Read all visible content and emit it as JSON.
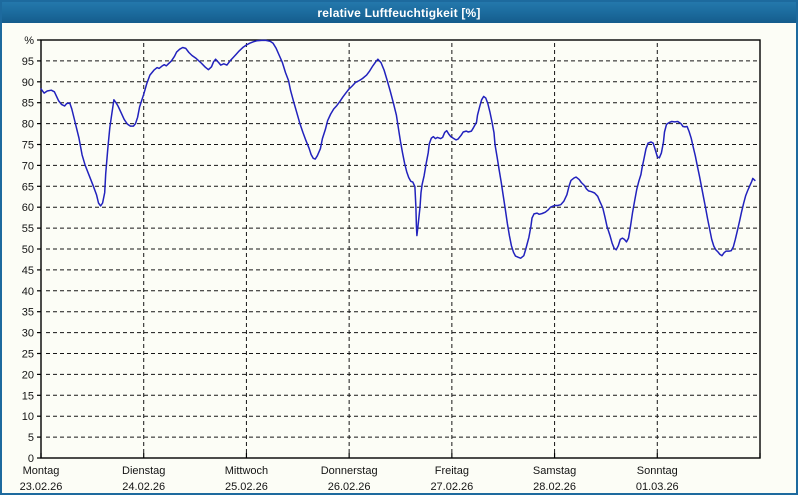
{
  "window": {
    "title": "relative Luftfeuchtigkeit [%]"
  },
  "colors": {
    "titlebar_bg": "#1b6a9c",
    "titlebar_text": "#ffffff",
    "window_border": "#1d6a9e",
    "canvas_bg": "#fcfdf6",
    "plot_frame": "#000000",
    "gridline": "#161616",
    "series_line": "#2222bd",
    "label_text": "#141414"
  },
  "chart_data": {
    "type": "line",
    "title": "relative Luftfeuchtigkeit [%]",
    "unit": "%",
    "ylim": [
      0,
      100
    ],
    "ytick_step": 5,
    "ytick_labels": [
      "0",
      "5",
      "10",
      "15",
      "20",
      "25",
      "30",
      "35",
      "40",
      "45",
      "50",
      "55",
      "60",
      "65",
      "70",
      "75",
      "80",
      "85",
      "90",
      "95",
      "%"
    ],
    "grid": "dashed",
    "legend_position": "none",
    "x_axis_note": "x in days since Monday 00:00, 7 days total",
    "days": [
      {
        "label": "Montag",
        "date": "23.02.26"
      },
      {
        "label": "Dienstag",
        "date": "24.02.26"
      },
      {
        "label": "Mittwoch",
        "date": "25.02.26"
      },
      {
        "label": "Donnerstag",
        "date": "26.02.26"
      },
      {
        "label": "Freitag",
        "date": "27.02.26"
      },
      {
        "label": "Samstag",
        "date": "28.02.26"
      },
      {
        "label": "Sonntag",
        "date": "01.03.26"
      }
    ],
    "series": [
      {
        "name": "relative Luftfeuchtigkeit",
        "color": "#2222bd",
        "points": [
          [
            0,
            88.3
          ],
          [
            0.03,
            87.3
          ],
          [
            0.06,
            87.8
          ],
          [
            0.1,
            88
          ],
          [
            0.13,
            87.6
          ],
          [
            0.17,
            85.5
          ],
          [
            0.2,
            84.6
          ],
          [
            0.23,
            84.2
          ],
          [
            0.25,
            84.8
          ],
          [
            0.28,
            84.9
          ],
          [
            0.3,
            83.5
          ],
          [
            0.33,
            80.5
          ],
          [
            0.37,
            76.5
          ],
          [
            0.4,
            72.5
          ],
          [
            0.43,
            70
          ],
          [
            0.47,
            67.5
          ],
          [
            0.51,
            65
          ],
          [
            0.54,
            63
          ],
          [
            0.56,
            61
          ],
          [
            0.58,
            60.3
          ],
          [
            0.6,
            61
          ],
          [
            0.62,
            63.5
          ],
          [
            0.63,
            68
          ],
          [
            0.65,
            74
          ],
          [
            0.67,
            79
          ],
          [
            0.69,
            82.5
          ],
          [
            0.71,
            85.7
          ],
          [
            0.73,
            85
          ],
          [
            0.75,
            84.2
          ],
          [
            0.78,
            82.6
          ],
          [
            0.81,
            81
          ],
          [
            0.84,
            79.9
          ],
          [
            0.87,
            79.4
          ],
          [
            0.9,
            79.4
          ],
          [
            0.92,
            80
          ],
          [
            0.94,
            81.5
          ],
          [
            0.96,
            84
          ],
          [
            1,
            87
          ],
          [
            1.03,
            89.6
          ],
          [
            1.06,
            91.6
          ],
          [
            1.1,
            92.8
          ],
          [
            1.13,
            93.4
          ],
          [
            1.15,
            93.2
          ],
          [
            1.18,
            93.8
          ],
          [
            1.2,
            94.1
          ],
          [
            1.22,
            93.8
          ],
          [
            1.24,
            94.3
          ],
          [
            1.27,
            95
          ],
          [
            1.3,
            96.1
          ],
          [
            1.32,
            97.1
          ],
          [
            1.35,
            97.8
          ],
          [
            1.38,
            98.2
          ],
          [
            1.41,
            98
          ],
          [
            1.44,
            97
          ],
          [
            1.47,
            96.3
          ],
          [
            1.51,
            95.6
          ],
          [
            1.56,
            94.5
          ],
          [
            1.6,
            93.5
          ],
          [
            1.63,
            92.9
          ],
          [
            1.66,
            93.6
          ],
          [
            1.68,
            94.8
          ],
          [
            1.7,
            95.4
          ],
          [
            1.73,
            94.6
          ],
          [
            1.75,
            94
          ],
          [
            1.78,
            94.3
          ],
          [
            1.81,
            94
          ],
          [
            1.84,
            95
          ],
          [
            1.87,
            95.8
          ],
          [
            1.9,
            96.6
          ],
          [
            1.93,
            97.4
          ],
          [
            1.97,
            98.3
          ],
          [
            2,
            98.8
          ],
          [
            2.03,
            99.2
          ],
          [
            2.07,
            99.6
          ],
          [
            2.1,
            99.8
          ],
          [
            2.15,
            99.9
          ],
          [
            2.19,
            99.9
          ],
          [
            2.23,
            99.7
          ],
          [
            2.26,
            99.2
          ],
          [
            2.29,
            98
          ],
          [
            2.32,
            96.3
          ],
          [
            2.35,
            94.6
          ],
          [
            2.38,
            92.2
          ],
          [
            2.41,
            90.3
          ],
          [
            2.43,
            87.9
          ],
          [
            2.46,
            85.2
          ],
          [
            2.49,
            82.6
          ],
          [
            2.52,
            80.1
          ],
          [
            2.55,
            77.9
          ],
          [
            2.58,
            75.9
          ],
          [
            2.61,
            74.1
          ],
          [
            2.63,
            72.6
          ],
          [
            2.65,
            71.7
          ],
          [
            2.67,
            71.5
          ],
          [
            2.69,
            72.3
          ],
          [
            2.72,
            74
          ],
          [
            2.74,
            76.4
          ],
          [
            2.77,
            78.7
          ],
          [
            2.79,
            80.7
          ],
          [
            2.82,
            82.3
          ],
          [
            2.85,
            83.5
          ],
          [
            2.88,
            84.3
          ],
          [
            2.91,
            85.3
          ],
          [
            2.94,
            86.4
          ],
          [
            2.97,
            87.4
          ],
          [
            3,
            88.3
          ],
          [
            3.03,
            89
          ],
          [
            3.06,
            89.8
          ],
          [
            3.1,
            90.3
          ],
          [
            3.13,
            90.8
          ],
          [
            3.17,
            91.6
          ],
          [
            3.2,
            92.6
          ],
          [
            3.23,
            93.8
          ],
          [
            3.26,
            94.8
          ],
          [
            3.28,
            95.4
          ],
          [
            3.31,
            94.6
          ],
          [
            3.34,
            92.8
          ],
          [
            3.37,
            90.4
          ],
          [
            3.4,
            87.8
          ],
          [
            3.43,
            85
          ],
          [
            3.46,
            82
          ],
          [
            3.48,
            78.9
          ],
          [
            3.5,
            75.7
          ],
          [
            3.52,
            72.9
          ],
          [
            3.54,
            70.5
          ],
          [
            3.56,
            68.5
          ],
          [
            3.58,
            67.1
          ],
          [
            3.6,
            66.2
          ],
          [
            3.62,
            66
          ],
          [
            3.64,
            64.9
          ],
          [
            3.65,
            60
          ],
          [
            3.655,
            55.5
          ],
          [
            3.66,
            53.2
          ],
          [
            3.67,
            55.5
          ],
          [
            3.69,
            60
          ],
          [
            3.7,
            63.5
          ],
          [
            3.71,
            65.4
          ],
          [
            3.73,
            67.5
          ],
          [
            3.75,
            70.5
          ],
          [
            3.77,
            73
          ],
          [
            3.78,
            75.2
          ],
          [
            3.8,
            76.5
          ],
          [
            3.82,
            76.9
          ],
          [
            3.84,
            76.4
          ],
          [
            3.86,
            76.7
          ],
          [
            3.89,
            76.4
          ],
          [
            3.91,
            76.7
          ],
          [
            3.93,
            77.9
          ],
          [
            3.95,
            78.3
          ],
          [
            3.97,
            77.5
          ],
          [
            3.99,
            76.9
          ],
          [
            4.02,
            76.4
          ],
          [
            4.04,
            76.1
          ],
          [
            4.06,
            76.3
          ],
          [
            4.09,
            77.2
          ],
          [
            4.11,
            78
          ],
          [
            4.14,
            78.2
          ],
          [
            4.16,
            78
          ],
          [
            4.19,
            78.2
          ],
          [
            4.21,
            79
          ],
          [
            4.24,
            80.3
          ],
          [
            4.25,
            82
          ],
          [
            4.27,
            84
          ],
          [
            4.29,
            85.7
          ],
          [
            4.31,
            86.5
          ],
          [
            4.33,
            86.1
          ],
          [
            4.35,
            84.8
          ],
          [
            4.37,
            82.8
          ],
          [
            4.39,
            80.5
          ],
          [
            4.41,
            77.8
          ],
          [
            4.42,
            75
          ],
          [
            4.44,
            72
          ],
          [
            4.46,
            69
          ],
          [
            4.48,
            66
          ],
          [
            4.5,
            62.8
          ],
          [
            4.52,
            59.5
          ],
          [
            4.54,
            56.2
          ],
          [
            4.56,
            53.2
          ],
          [
            4.58,
            50.8
          ],
          [
            4.6,
            49.2
          ],
          [
            4.62,
            48.3
          ],
          [
            4.65,
            48
          ],
          [
            4.67,
            47.8
          ],
          [
            4.7,
            48.4
          ],
          [
            4.72,
            50
          ],
          [
            4.75,
            52.8
          ],
          [
            4.77,
            55.4
          ],
          [
            4.78,
            57.4
          ],
          [
            4.8,
            58.4
          ],
          [
            4.83,
            58.6
          ],
          [
            4.85,
            58.3
          ],
          [
            4.88,
            58.5
          ],
          [
            4.91,
            58.8
          ],
          [
            4.94,
            59.4
          ],
          [
            4.96,
            60
          ],
          [
            5,
            60.4
          ],
          [
            5.03,
            60.4
          ],
          [
            5.06,
            60.6
          ],
          [
            5.09,
            61.4
          ],
          [
            5.12,
            63
          ],
          [
            5.14,
            65
          ],
          [
            5.16,
            66.4
          ],
          [
            5.19,
            67
          ],
          [
            5.21,
            67.2
          ],
          [
            5.24,
            66.6
          ],
          [
            5.26,
            65.9
          ],
          [
            5.29,
            65.2
          ],
          [
            5.31,
            64.4
          ],
          [
            5.33,
            63.9
          ],
          [
            5.36,
            63.7
          ],
          [
            5.39,
            63.4
          ],
          [
            5.42,
            62.6
          ],
          [
            5.44,
            61.4
          ],
          [
            5.47,
            59.8
          ],
          [
            5.49,
            57.7
          ],
          [
            5.51,
            55.4
          ],
          [
            5.54,
            53.2
          ],
          [
            5.56,
            51.4
          ],
          [
            5.58,
            50.2
          ],
          [
            5.6,
            49.8
          ],
          [
            5.62,
            50.8
          ],
          [
            5.64,
            52.3
          ],
          [
            5.66,
            52.6
          ],
          [
            5.68,
            52.3
          ],
          [
            5.7,
            51.7
          ],
          [
            5.72,
            52.6
          ],
          [
            5.74,
            55.6
          ],
          [
            5.76,
            58.8
          ],
          [
            5.78,
            61.6
          ],
          [
            5.8,
            64.2
          ],
          [
            5.82,
            66.2
          ],
          [
            5.84,
            67.8
          ],
          [
            5.85,
            69.2
          ],
          [
            5.87,
            71.5
          ],
          [
            5.89,
            74
          ],
          [
            5.91,
            75.3
          ],
          [
            5.94,
            75.6
          ],
          [
            5.96,
            75.3
          ],
          [
            5.98,
            73.8
          ],
          [
            6,
            72.1
          ],
          [
            6.02,
            71.8
          ],
          [
            6.04,
            73
          ],
          [
            6.06,
            75.5
          ],
          [
            6.07,
            78
          ],
          [
            6.09,
            79.8
          ],
          [
            6.12,
            80.3
          ],
          [
            6.14,
            80.5
          ],
          [
            6.17,
            80.4
          ],
          [
            6.2,
            80.5
          ],
          [
            6.23,
            80
          ],
          [
            6.25,
            79.3
          ],
          [
            6.27,
            79.2
          ],
          [
            6.29,
            79.3
          ],
          [
            6.31,
            78.1
          ],
          [
            6.33,
            76.5
          ],
          [
            6.35,
            74.4
          ],
          [
            6.37,
            72.3
          ],
          [
            6.39,
            69.9
          ],
          [
            6.41,
            67.5
          ],
          [
            6.43,
            64.9
          ],
          [
            6.45,
            62.4
          ],
          [
            6.47,
            59.8
          ],
          [
            6.49,
            57.2
          ],
          [
            6.51,
            54.7
          ],
          [
            6.53,
            52.3
          ],
          [
            6.55,
            50.7
          ],
          [
            6.57,
            49.8
          ],
          [
            6.59,
            49.3
          ],
          [
            6.61,
            48.7
          ],
          [
            6.63,
            48.4
          ],
          [
            6.65,
            49.1
          ],
          [
            6.67,
            49.5
          ],
          [
            6.7,
            49.5
          ],
          [
            6.72,
            49.6
          ],
          [
            6.74,
            50.5
          ],
          [
            6.76,
            52.3
          ],
          [
            6.78,
            54.4
          ],
          [
            6.8,
            56.6
          ],
          [
            6.82,
            58.8
          ],
          [
            6.84,
            60.9
          ],
          [
            6.86,
            62.7
          ],
          [
            6.88,
            64
          ],
          [
            6.9,
            65.1
          ],
          [
            6.92,
            66.2
          ],
          [
            6.93,
            66.9
          ],
          [
            6.95,
            66.4
          ]
        ]
      }
    ]
  }
}
